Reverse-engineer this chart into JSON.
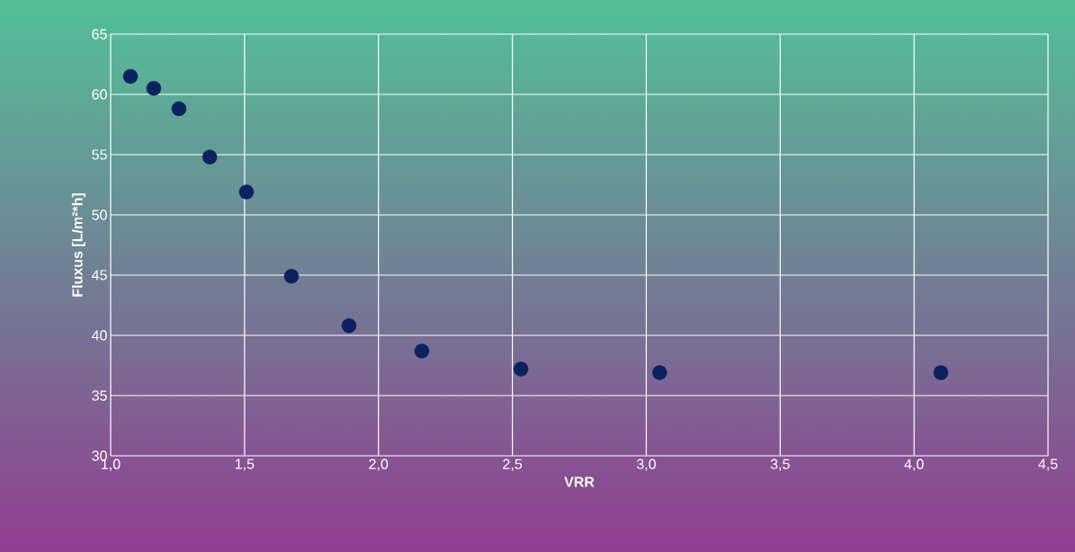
{
  "chart_data": {
    "type": "scatter",
    "xlabel": "VRR",
    "ylabel": "Fluxus [L/m²*h]",
    "x": [
      1.074,
      1.161,
      1.255,
      1.37,
      1.507,
      1.675,
      1.89,
      2.162,
      2.532,
      3.05,
      4.1
    ],
    "values": [
      61.5,
      60.5,
      58.8,
      54.8,
      51.9,
      44.9,
      40.8,
      38.7,
      37.2,
      36.9,
      36.9
    ],
    "color": "#0b2160",
    "marker": "circle",
    "grid": true,
    "xlim": [
      1.0,
      4.5
    ],
    "ylim": [
      30,
      65
    ],
    "xticks": [
      {
        "value": 1.0,
        "label": "1,0"
      },
      {
        "value": 1.5,
        "label": "1,5"
      },
      {
        "value": 2.0,
        "label": "2,0"
      },
      {
        "value": 2.5,
        "label": "2,5"
      },
      {
        "value": 3.0,
        "label": "3,0"
      },
      {
        "value": 3.5,
        "label": "3,5"
      },
      {
        "value": 4.0,
        "label": "4,0"
      },
      {
        "value": 4.5,
        "label": "4,5"
      }
    ],
    "yticks": [
      30,
      35,
      40,
      45,
      50,
      55,
      60,
      65
    ]
  }
}
